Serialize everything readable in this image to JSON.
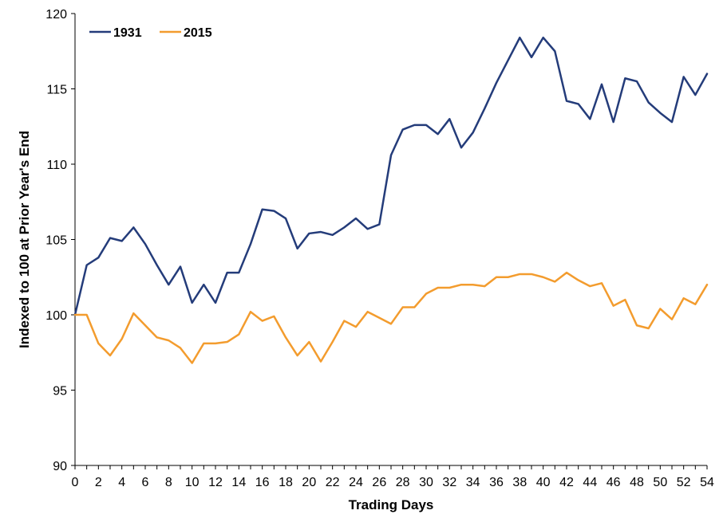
{
  "chart_data": {
    "type": "line",
    "title": "",
    "xlabel": "Trading Days",
    "ylabel": "Indexed to 100 at Prior Year's End",
    "xlim": [
      0,
      54
    ],
    "ylim": [
      90,
      120
    ],
    "x_ticks": [
      0,
      2,
      4,
      6,
      8,
      10,
      12,
      14,
      16,
      18,
      20,
      22,
      24,
      26,
      28,
      30,
      32,
      34,
      36,
      38,
      40,
      42,
      44,
      46,
      48,
      50,
      52,
      54
    ],
    "y_ticks": [
      90,
      95,
      100,
      105,
      110,
      115,
      120
    ],
    "grid": false,
    "legend_position": "top-left",
    "x": [
      0,
      1,
      2,
      3,
      4,
      5,
      6,
      7,
      8,
      9,
      10,
      11,
      12,
      13,
      14,
      15,
      16,
      17,
      18,
      19,
      20,
      21,
      22,
      23,
      24,
      25,
      26,
      27,
      28,
      29,
      30,
      31,
      32,
      33,
      34,
      35,
      36,
      37,
      38,
      39,
      40,
      41,
      42,
      43,
      44,
      45,
      46,
      47,
      48,
      49,
      50,
      51,
      52,
      53,
      54
    ],
    "series": [
      {
        "name": "1931",
        "color": "#243c7a",
        "values": [
          100,
          103.3,
          103.8,
          105.1,
          104.9,
          105.8,
          104.7,
          103.3,
          102.0,
          103.2,
          100.8,
          102.0,
          100.8,
          102.8,
          102.8,
          104.7,
          107.0,
          106.9,
          106.4,
          104.4,
          105.4,
          105.5,
          105.3,
          105.8,
          106.4,
          105.7,
          106.0,
          110.6,
          112.3,
          112.6,
          112.6,
          112.0,
          113.0,
          111.1,
          112.1,
          113.7,
          115.4,
          116.9,
          118.4,
          117.1,
          118.4,
          117.5,
          114.2,
          114.0,
          113.0,
          115.3,
          112.8,
          115.7,
          115.5,
          114.1,
          113.4,
          112.8,
          115.8,
          114.6,
          116.0
        ]
      },
      {
        "name": "2015",
        "color": "#f39c2e",
        "values": [
          100,
          100,
          98.1,
          97.3,
          98.4,
          100.1,
          99.3,
          98.5,
          98.3,
          97.8,
          96.8,
          98.1,
          98.1,
          98.2,
          98.7,
          100.2,
          99.6,
          99.9,
          98.5,
          97.3,
          98.2,
          96.9,
          98.2,
          99.6,
          99.2,
          100.2,
          99.8,
          99.4,
          100.5,
          100.5,
          101.4,
          101.8,
          101.8,
          102.0,
          102.0,
          101.9,
          102.5,
          102.5,
          102.7,
          102.7,
          102.5,
          102.2,
          102.8,
          102.3,
          101.9,
          102.1,
          100.6,
          101.0,
          99.3,
          99.1,
          100.4,
          99.7,
          101.1,
          100.7,
          102.0
        ]
      }
    ]
  }
}
